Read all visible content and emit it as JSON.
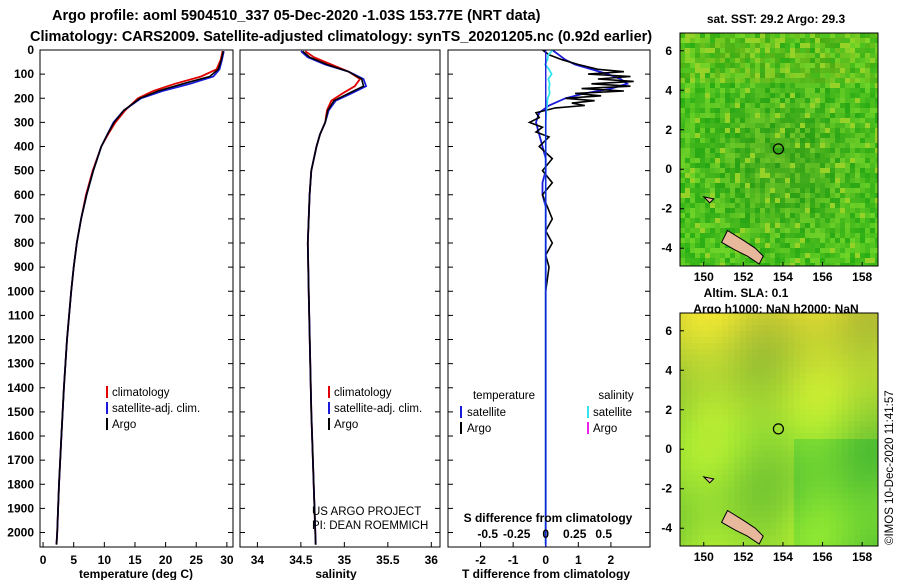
{
  "title_line1": "Argo profile: aoml 5904510_337 05-Dec-2020 -1.03S 153.77E (NRT data)",
  "title_line2": "Climatology: CARS2009. Satellite-adjusted climatology: synTS_20201205.nc (0.92d earlier)",
  "watermark": "©IMOS 10-Dec-2020 11:41:57",
  "colors": {
    "climatology": "#e00000",
    "satellite": "#1a1adc",
    "argo": "#000000",
    "sal_satellite": "#33e6ee",
    "sal_argo": "#ee22ee"
  },
  "chart_data": [
    {
      "type": "line",
      "xlabel": "temperature (deg C)",
      "xlim": [
        -0.5,
        31
      ],
      "ylim": [
        2060,
        0
      ],
      "xticks": [
        "0",
        "5",
        "10",
        "15",
        "20",
        "25",
        "30"
      ],
      "yticks": [
        "0",
        "100",
        "200",
        "300",
        "400",
        "500",
        "600",
        "700",
        "800",
        "900",
        "1000",
        "1100",
        "1200",
        "1300",
        "1400",
        "1500",
        "1600",
        "1700",
        "1800",
        "1900",
        "2000"
      ],
      "legend": {
        "items": [
          "climatology",
          "satellite-adj. clim.",
          "Argo"
        ]
      },
      "series": [
        {
          "name": "climatology",
          "color": "#e00000",
          "depth": [
            5,
            40,
            80,
            110,
            140,
            170,
            200,
            250,
            300,
            350,
            400,
            500,
            600,
            700,
            800,
            900,
            1000,
            1200,
            1400,
            1600,
            1800,
            2000,
            2050
          ],
          "values": [
            29.3,
            29.0,
            28.3,
            25.8,
            21.5,
            18.0,
            15.5,
            13.4,
            11.8,
            10.6,
            9.5,
            8.1,
            7.0,
            6.2,
            5.5,
            5.0,
            4.6,
            3.9,
            3.4,
            3.0,
            2.6,
            2.3,
            2.2
          ]
        },
        {
          "name": "satellite-adj. clim.",
          "color": "#1a1adc",
          "depth": [
            5,
            40,
            80,
            110,
            140,
            170,
            200,
            250,
            300,
            350,
            400,
            500,
            600,
            700,
            800,
            900,
            1000,
            1200,
            1400,
            1600,
            1800,
            2000,
            2050
          ],
          "values": [
            29.5,
            29.2,
            28.8,
            27.8,
            24.0,
            19.5,
            16.0,
            13.2,
            11.5,
            10.5,
            9.5,
            8.2,
            7.1,
            6.2,
            5.5,
            5.0,
            4.6,
            3.9,
            3.4,
            3.0,
            2.6,
            2.3,
            2.2
          ]
        },
        {
          "name": "Argo",
          "color": "#000000",
          "depth": [
            5,
            40,
            80,
            110,
            140,
            170,
            200,
            250,
            300,
            350,
            400,
            500,
            600,
            700,
            800,
            900,
            1000,
            1200,
            1400,
            1600,
            1800,
            2000,
            2050
          ],
          "values": [
            29.4,
            29.1,
            28.6,
            27.2,
            22.8,
            18.8,
            15.8,
            13.2,
            11.6,
            10.5,
            9.5,
            8.2,
            7.1,
            6.2,
            5.5,
            5.0,
            4.6,
            3.9,
            3.4,
            3.0,
            2.6,
            2.3,
            2.2
          ]
        }
      ]
    },
    {
      "type": "line",
      "xlabel": "salinity",
      "xlim": [
        33.8,
        36.1
      ],
      "ylim": [
        2060,
        0
      ],
      "xticks": [
        "34",
        "34.5",
        "35",
        "35.5",
        "36"
      ],
      "legend": {
        "items": [
          "climatology",
          "satellite-adj. clim.",
          "Argo"
        ]
      },
      "annotations": [
        "US ARGO PROJECT",
        "PI: DEAN ROEMMICH"
      ],
      "series": [
        {
          "name": "climatology",
          "color": "#e00000",
          "depth": [
            5,
            30,
            60,
            90,
            120,
            150,
            180,
            210,
            250,
            300,
            350,
            400,
            500,
            600,
            800,
            1000,
            1500,
            2050
          ],
          "values": [
            34.55,
            34.65,
            34.85,
            35.05,
            35.18,
            35.12,
            34.98,
            34.85,
            34.8,
            34.78,
            34.72,
            34.68,
            34.62,
            34.6,
            34.58,
            34.59,
            34.62,
            34.67
          ]
        },
        {
          "name": "satellite-adj. clim.",
          "color": "#1a1adc",
          "depth": [
            5,
            30,
            60,
            90,
            120,
            150,
            180,
            210,
            250,
            300,
            350,
            400,
            500,
            600,
            800,
            1000,
            1500,
            2050
          ],
          "values": [
            34.5,
            34.58,
            34.78,
            35.05,
            35.22,
            35.25,
            35.08,
            34.9,
            34.82,
            34.78,
            34.72,
            34.68,
            34.62,
            34.6,
            34.58,
            34.59,
            34.62,
            34.67
          ]
        },
        {
          "name": "Argo",
          "color": "#000000",
          "depth": [
            5,
            30,
            60,
            90,
            120,
            150,
            180,
            210,
            250,
            300,
            350,
            400,
            500,
            600,
            800,
            1000,
            1500,
            2050
          ],
          "values": [
            34.52,
            34.6,
            34.8,
            35.05,
            35.2,
            35.22,
            35.05,
            34.88,
            34.81,
            34.78,
            34.72,
            34.68,
            34.62,
            34.6,
            34.58,
            34.59,
            34.62,
            34.67
          ]
        }
      ]
    },
    {
      "type": "line",
      "xlabel": "T difference from climatology",
      "top_label": "S difference from climatology",
      "xlim": [
        -3,
        3.2
      ],
      "ylim": [
        2060,
        0
      ],
      "xticks": [
        "-2",
        "-1",
        "0",
        "1",
        "2"
      ],
      "top_ticks": [
        "-0.5",
        "-0.25",
        "0",
        "0.25",
        "0.5"
      ],
      "top_tick_values": [
        -0.5,
        -0.25,
        0,
        0.25,
        0.5
      ],
      "legend": {
        "temperature": "temperature",
        "salinity": "salinity",
        "items_t": [
          "satellite",
          "Argo"
        ],
        "items_s": [
          "satellite",
          "Argo"
        ]
      },
      "series": [
        {
          "name": "temperature satellite",
          "color": "#1a1adc",
          "depth": [
            0,
            20,
            40,
            60,
            80,
            100,
            120,
            140,
            160,
            180,
            200,
            230,
            260,
            300,
            350,
            400,
            450,
            500,
            550,
            600,
            650,
            700,
            800,
            900,
            1000,
            1500,
            2050
          ],
          "values": [
            0.2,
            0.4,
            0.6,
            0.9,
            1.4,
            1.9,
            2.3,
            2.5,
            2.0,
            1.2,
            0.6,
            0.1,
            -0.2,
            -0.3,
            -0.2,
            -0.1,
            0.0,
            0.0,
            -0.1,
            -0.1,
            0.0,
            0.0,
            0.0,
            0.0,
            0.0,
            0.0,
            0.0
          ]
        },
        {
          "name": "temperature Argo",
          "color": "#000000",
          "depth": [
            0,
            20,
            40,
            60,
            80,
            90,
            100,
            110,
            120,
            130,
            140,
            150,
            160,
            170,
            180,
            190,
            200,
            210,
            220,
            230,
            240,
            260,
            280,
            300,
            320,
            340,
            360,
            400,
            450,
            500,
            550,
            600,
            700,
            750,
            800,
            850,
            900,
            1000,
            1500,
            2050
          ],
          "values": [
            -0.1,
            0.1,
            0.5,
            1.0,
            1.6,
            2.4,
            1.3,
            2.6,
            1.6,
            2.7,
            1.4,
            2.6,
            1.1,
            2.4,
            0.9,
            1.7,
            0.6,
            1.5,
            0.8,
            1.2,
            0.3,
            -0.3,
            -0.2,
            -0.5,
            -0.1,
            -0.3,
            0.1,
            -0.2,
            0.2,
            -0.1,
            0.2,
            -0.1,
            0.2,
            0.0,
            0.2,
            0.0,
            0.1,
            0.0,
            0.0,
            0.0
          ]
        },
        {
          "name": "salinity satellite",
          "color": "#33e6ee",
          "depth": [
            0,
            20,
            40,
            60,
            80,
            100,
            120,
            140,
            160,
            180,
            200,
            250,
            300,
            400,
            500,
            1000,
            2050
          ],
          "values": [
            0.22,
            0.08,
            0.05,
            -0.02,
            0.1,
            0.18,
            0.08,
            0.12,
            0.1,
            0.12,
            0.06,
            0.02,
            0.0,
            0.0,
            0.0,
            0.0,
            0.0
          ]
        }
      ]
    },
    {
      "type": "heatmap",
      "title": "sat. SST: 29.2 Argo: 29.3",
      "xlim": [
        148.8,
        158.8
      ],
      "ylim": [
        -4.9,
        6.9
      ],
      "xticks": [
        "150",
        "152",
        "154",
        "156",
        "158"
      ],
      "yticks": [
        "-4",
        "-2",
        "0",
        "2",
        "4",
        "6"
      ],
      "marker": {
        "lon": 153.77,
        "lat": 1.03
      }
    },
    {
      "type": "heatmap",
      "title_line1": "Altim. SLA: 0.1",
      "title_line2": "Argo h1000: NaN h2000: NaN",
      "xlim": [
        148.8,
        158.8
      ],
      "ylim": [
        -4.9,
        6.9
      ],
      "xticks": [
        "150",
        "152",
        "154",
        "156",
        "158"
      ],
      "yticks": [
        "-4",
        "-2",
        "0",
        "2",
        "4",
        "6"
      ],
      "marker": {
        "lon": 153.77,
        "lat": 1.03
      }
    }
  ]
}
